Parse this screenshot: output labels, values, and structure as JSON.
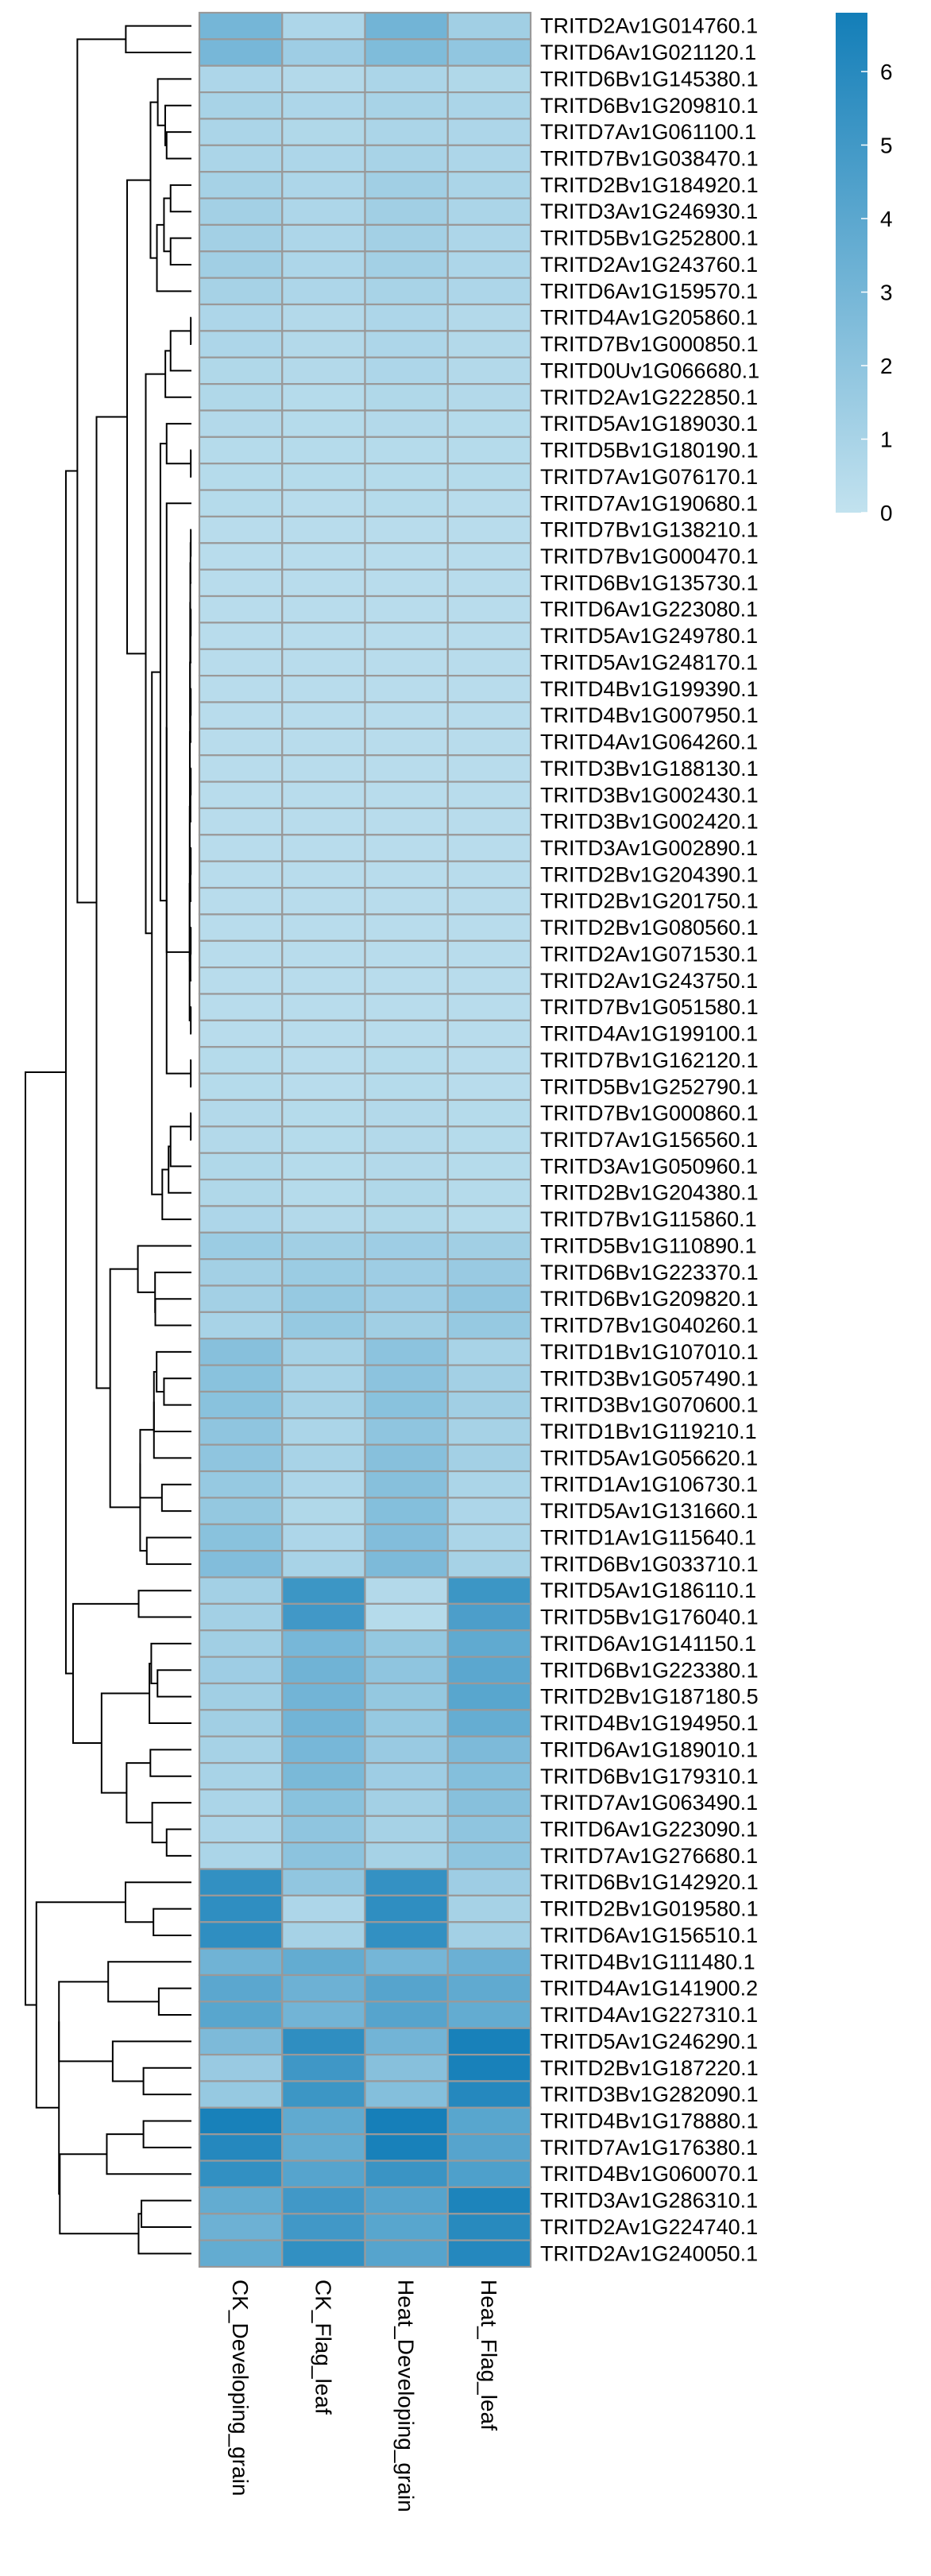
{
  "chart_data": {
    "type": "heatmap",
    "title": "",
    "xlabel": "",
    "ylabel": "",
    "columns": [
      "CK_Developing_grain",
      "CK_Flag_leaf",
      "Heat_Developing_grain",
      "Heat_Flag_leaf"
    ],
    "rows": [
      "TRITD2Av1G014760.1",
      "TRITD6Av1G021120.1",
      "TRITD6Bv1G145380.1",
      "TRITD6Bv1G209810.1",
      "TRITD7Av1G061100.1",
      "TRITD7Bv1G038470.1",
      "TRITD2Bv1G184920.1",
      "TRITD3Av1G246930.1",
      "TRITD5Bv1G252800.1",
      "TRITD2Av1G243760.1",
      "TRITD6Av1G159570.1",
      "TRITD4Av1G205860.1",
      "TRITD7Bv1G000850.1",
      "TRITD0Uv1G066680.1",
      "TRITD2Av1G222850.1",
      "TRITD5Av1G189030.1",
      "TRITD5Bv1G180190.1",
      "TRITD7Av1G076170.1",
      "TRITD7Av1G190680.1",
      "TRITD7Bv1G138210.1",
      "TRITD7Bv1G000470.1",
      "TRITD6Bv1G135730.1",
      "TRITD6Av1G223080.1",
      "TRITD5Av1G249780.1",
      "TRITD5Av1G248170.1",
      "TRITD4Bv1G199390.1",
      "TRITD4Bv1G007950.1",
      "TRITD4Av1G064260.1",
      "TRITD3Bv1G188130.1",
      "TRITD3Bv1G002430.1",
      "TRITD3Bv1G002420.1",
      "TRITD3Av1G002890.1",
      "TRITD2Bv1G204390.1",
      "TRITD2Bv1G201750.1",
      "TRITD2Bv1G080560.1",
      "TRITD2Av1G071530.1",
      "TRITD2Av1G243750.1",
      "TRITD7Bv1G051580.1",
      "TRITD4Av1G199100.1",
      "TRITD7Bv1G162120.1",
      "TRITD5Bv1G252790.1",
      "TRITD7Bv1G000860.1",
      "TRITD7Av1G156560.1",
      "TRITD3Av1G050960.1",
      "TRITD2Bv1G204380.1",
      "TRITD7Bv1G115860.1",
      "TRITD5Bv1G110890.1",
      "TRITD6Bv1G223370.1",
      "TRITD6Bv1G209820.1",
      "TRITD7Bv1G040260.1",
      "TRITD1Bv1G107010.1",
      "TRITD3Bv1G057490.1",
      "TRITD3Bv1G070600.1",
      "TRITD1Bv1G119210.1",
      "TRITD5Av1G056620.1",
      "TRITD1Av1G106730.1",
      "TRITD5Av1G131660.1",
      "TRITD1Av1G115640.1",
      "TRITD6Bv1G033710.1",
      "TRITD5Av1G186110.1",
      "TRITD5Bv1G176040.1",
      "TRITD6Av1G141150.1",
      "TRITD6Bv1G223380.1",
      "TRITD2Bv1G187180.5",
      "TRITD4Bv1G194950.1",
      "TRITD6Av1G189010.1",
      "TRITD6Bv1G179310.1",
      "TRITD7Av1G063490.1",
      "TRITD6Av1G223090.1",
      "TRITD7Av1G276680.1",
      "TRITD6Bv1G142920.1",
      "TRITD2Bv1G019580.1",
      "TRITD6Av1G156510.1",
      "TRITD4Bv1G111480.1",
      "TRITD4Av1G141900.2",
      "TRITD4Av1G227310.1",
      "TRITD5Av1G246290.1",
      "TRITD2Bv1G187220.1",
      "TRITD3Bv1G282090.1",
      "TRITD4Bv1G178880.1",
      "TRITD7Av1G176380.1",
      "TRITD4Bv1G060070.1",
      "TRITD3Av1G286310.1",
      "TRITD2Av1G224740.1",
      "TRITD2Av1G240050.1"
    ],
    "values": [
      [
        3.0,
        0.8,
        3.1,
        1.3
      ],
      [
        2.9,
        1.4,
        2.6,
        1.9
      ],
      [
        0.8,
        0.6,
        0.9,
        0.7
      ],
      [
        1.0,
        0.8,
        1.0,
        0.9
      ],
      [
        0.9,
        0.7,
        0.9,
        0.8
      ],
      [
        0.9,
        0.8,
        1.0,
        0.8
      ],
      [
        1.1,
        0.8,
        1.3,
        0.9
      ],
      [
        1.2,
        0.8,
        1.3,
        0.9
      ],
      [
        1.2,
        0.8,
        1.2,
        0.8
      ],
      [
        1.3,
        0.8,
        1.2,
        0.8
      ],
      [
        1.1,
        0.8,
        1.0,
        0.8
      ],
      [
        0.8,
        0.6,
        0.8,
        0.6
      ],
      [
        0.8,
        0.6,
        0.8,
        0.6
      ],
      [
        0.7,
        0.6,
        0.8,
        0.6
      ],
      [
        0.7,
        0.5,
        0.7,
        0.6
      ],
      [
        0.6,
        0.5,
        0.6,
        0.5
      ],
      [
        0.5,
        0.5,
        0.5,
        0.5
      ],
      [
        0.5,
        0.5,
        0.5,
        0.5
      ],
      [
        0.5,
        0.4,
        0.5,
        0.4
      ],
      [
        0.4,
        0.4,
        0.4,
        0.4
      ],
      [
        0.4,
        0.4,
        0.4,
        0.4
      ],
      [
        0.4,
        0.4,
        0.4,
        0.4
      ],
      [
        0.4,
        0.4,
        0.4,
        0.4
      ],
      [
        0.4,
        0.4,
        0.4,
        0.4
      ],
      [
        0.4,
        0.4,
        0.4,
        0.4
      ],
      [
        0.4,
        0.4,
        0.4,
        0.4
      ],
      [
        0.4,
        0.4,
        0.4,
        0.4
      ],
      [
        0.4,
        0.4,
        0.4,
        0.4
      ],
      [
        0.4,
        0.4,
        0.4,
        0.4
      ],
      [
        0.4,
        0.4,
        0.4,
        0.4
      ],
      [
        0.4,
        0.4,
        0.4,
        0.4
      ],
      [
        0.4,
        0.4,
        0.4,
        0.4
      ],
      [
        0.4,
        0.4,
        0.4,
        0.4
      ],
      [
        0.4,
        0.4,
        0.4,
        0.4
      ],
      [
        0.4,
        0.4,
        0.4,
        0.4
      ],
      [
        0.4,
        0.4,
        0.4,
        0.4
      ],
      [
        0.4,
        0.4,
        0.4,
        0.4
      ],
      [
        0.4,
        0.4,
        0.4,
        0.4
      ],
      [
        0.4,
        0.4,
        0.4,
        0.4
      ],
      [
        0.5,
        0.4,
        0.5,
        0.4
      ],
      [
        0.5,
        0.4,
        0.5,
        0.4
      ],
      [
        0.6,
        0.5,
        0.6,
        0.5
      ],
      [
        0.6,
        0.5,
        0.6,
        0.5
      ],
      [
        0.7,
        0.5,
        0.6,
        0.5
      ],
      [
        0.7,
        0.5,
        0.7,
        0.5
      ],
      [
        0.8,
        0.6,
        0.7,
        0.5
      ],
      [
        1.5,
        1.3,
        1.4,
        1.3
      ],
      [
        1.2,
        1.5,
        1.4,
        1.6
      ],
      [
        1.2,
        1.7,
        1.4,
        1.9
      ],
      [
        1.0,
        1.7,
        1.3,
        1.7
      ],
      [
        2.3,
        1.1,
        2.1,
        1.0
      ],
      [
        2.2,
        1.0,
        2.1,
        1.2
      ],
      [
        2.2,
        1.1,
        2.2,
        1.3
      ],
      [
        2.0,
        0.9,
        2.0,
        1.1
      ],
      [
        2.0,
        1.0,
        2.3,
        1.2
      ],
      [
        1.7,
        0.8,
        2.3,
        0.9
      ],
      [
        1.8,
        0.7,
        2.4,
        0.8
      ],
      [
        2.2,
        0.8,
        2.5,
        0.9
      ],
      [
        2.5,
        1.0,
        2.7,
        1.1
      ],
      [
        1.2,
        5.2,
        0.6,
        5.2
      ],
      [
        1.2,
        5.0,
        0.5,
        4.6
      ],
      [
        1.3,
        2.9,
        1.8,
        3.8
      ],
      [
        1.4,
        3.2,
        2.0,
        4.0
      ],
      [
        1.3,
        3.1,
        1.8,
        4.1
      ],
      [
        1.3,
        3.1,
        1.7,
        3.6
      ],
      [
        1.1,
        2.9,
        1.6,
        2.7
      ],
      [
        1.0,
        2.8,
        1.4,
        2.4
      ],
      [
        0.9,
        2.2,
        1.2,
        2.3
      ],
      [
        0.8,
        2.0,
        1.1,
        2.0
      ],
      [
        0.9,
        2.1,
        1.1,
        2.0
      ],
      [
        5.6,
        1.9,
        5.5,
        1.4
      ],
      [
        5.7,
        0.8,
        5.7,
        1.1
      ],
      [
        5.7,
        1.1,
        5.6,
        1.2
      ],
      [
        3.2,
        3.7,
        3.0,
        3.4
      ],
      [
        4.0,
        3.3,
        4.2,
        3.8
      ],
      [
        4.1,
        3.1,
        4.2,
        3.7
      ],
      [
        2.7,
        5.7,
        3.1,
        6.6
      ],
      [
        1.6,
        5.1,
        2.3,
        6.6
      ],
      [
        1.7,
        5.2,
        2.4,
        6.1
      ],
      [
        6.6,
        3.8,
        6.7,
        4.1
      ],
      [
        6.1,
        3.7,
        6.6,
        4.2
      ],
      [
        5.6,
        4.2,
        5.3,
        4.5
      ],
      [
        3.7,
        5.0,
        4.2,
        6.4
      ],
      [
        3.3,
        5.0,
        4.1,
        6.0
      ],
      [
        3.7,
        5.6,
        4.2,
        6.1
      ]
    ],
    "legend": {
      "position": "top-right",
      "ticks": [
        0,
        1,
        2,
        3,
        4,
        5,
        6
      ],
      "min": 0,
      "max": 6.8,
      "low_color": "#c2e2ef",
      "high_color": "#137eb8"
    },
    "cell_border_color": "#999999"
  }
}
